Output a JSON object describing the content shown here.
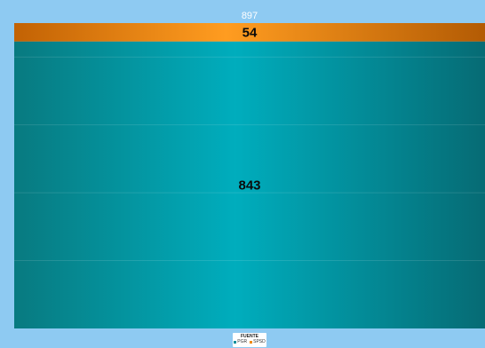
{
  "chart_data": {
    "type": "bar",
    "stacked": true,
    "categories": [
      ""
    ],
    "series": [
      {
        "name": "PGR",
        "values": [
          843
        ],
        "color": "#0a8f9c"
      },
      {
        "name": "SPSD",
        "values": [
          54
        ],
        "color": "#f08a12"
      }
    ],
    "total": 897,
    "ylim": [
      0,
      897
    ],
    "grid": true,
    "legend_position": "bottom",
    "legend_title": "FUENTE"
  }
}
